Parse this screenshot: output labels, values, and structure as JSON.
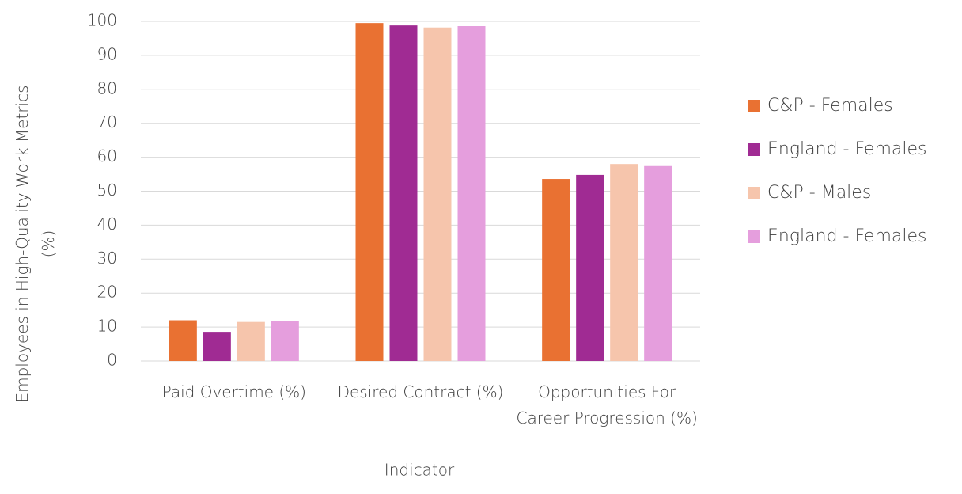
{
  "chart_data": {
    "type": "bar",
    "x_label": "Indicator",
    "y_label": "Employees in High-Quality Work Metrics (%)",
    "categories": [
      "Paid Overtime (%)",
      "Desired Contract (%)",
      "Opportunities For Career Progression (%)"
    ],
    "series": [
      {
        "name": "C&P - Females",
        "color": "#e97132",
        "values": [
          12,
          99.5,
          53.6
        ]
      },
      {
        "name": "England - Females",
        "color": "#a02b93",
        "values": [
          8.6,
          98.8,
          54.8
        ]
      },
      {
        "name": "C&P - Males",
        "color": "#f6c5ac",
        "values": [
          11.5,
          98.2,
          58
        ]
      },
      {
        "name": "England - Females",
        "color": "#e59edd",
        "values": [
          11.7,
          98.6,
          57.4
        ]
      }
    ],
    "ylim": [
      0,
      100
    ],
    "yticks": [
      0,
      10,
      20,
      30,
      40,
      50,
      60,
      70,
      80,
      90,
      100
    ],
    "grid": true,
    "legend": "right"
  }
}
